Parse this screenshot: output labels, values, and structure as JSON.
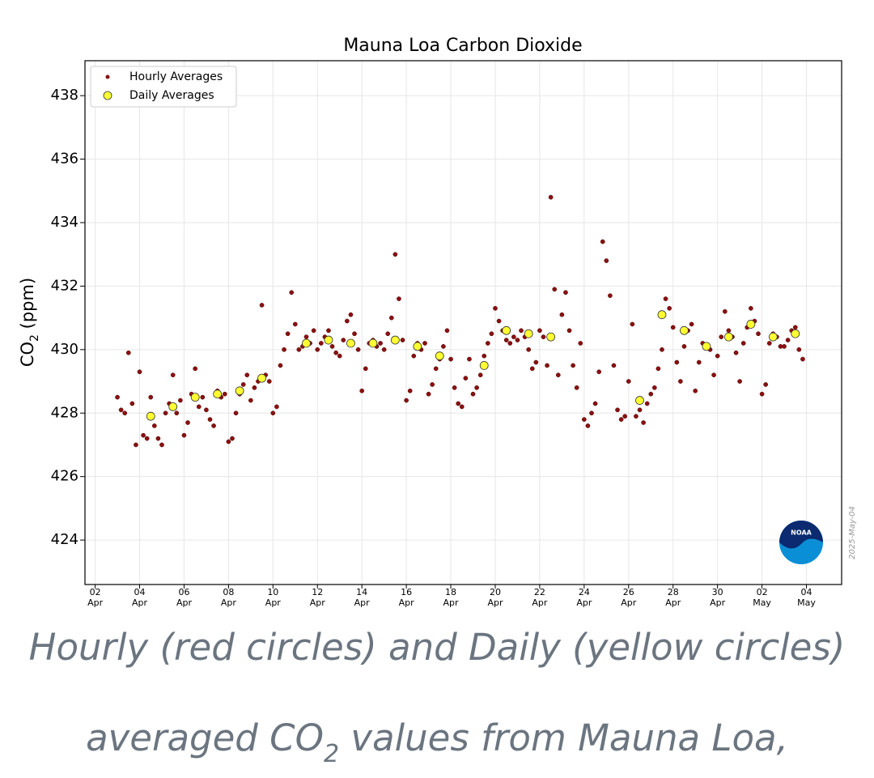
{
  "chart_data": {
    "type": "scatter",
    "title": "Mauna Loa Carbon Dioxide",
    "ylabel": [
      "CO",
      "2",
      " (ppm)"
    ],
    "xlim": [
      "04-01T13",
      "05-05T14"
    ],
    "xticks": [
      {
        "value": "04-02T00",
        "label": [
          "02",
          "Apr"
        ]
      },
      {
        "value": "04-04T00",
        "label": [
          "04",
          "Apr"
        ]
      },
      {
        "value": "04-06T00",
        "label": [
          "06",
          "Apr"
        ]
      },
      {
        "value": "04-08T00",
        "label": [
          "08",
          "Apr"
        ]
      },
      {
        "value": "04-10T00",
        "label": [
          "10",
          "Apr"
        ]
      },
      {
        "value": "04-12T00",
        "label": [
          "12",
          "Apr"
        ]
      },
      {
        "value": "04-14T00",
        "label": [
          "14",
          "Apr"
        ]
      },
      {
        "value": "04-16T00",
        "label": [
          "16",
          "Apr"
        ]
      },
      {
        "value": "04-18T00",
        "label": [
          "18",
          "Apr"
        ]
      },
      {
        "value": "04-20T00",
        "label": [
          "20",
          "Apr"
        ]
      },
      {
        "value": "04-22T00",
        "label": [
          "22",
          "Apr"
        ]
      },
      {
        "value": "04-24T00",
        "label": [
          "24",
          "Apr"
        ]
      },
      {
        "value": "04-26T00",
        "label": [
          "26",
          "Apr"
        ]
      },
      {
        "value": "04-28T00",
        "label": [
          "28",
          "Apr"
        ]
      },
      {
        "value": "04-30T00",
        "label": [
          "30",
          "Apr"
        ]
      },
      {
        "value": "05-02T00",
        "label": [
          "02",
          "May"
        ]
      },
      {
        "value": "05-04T00",
        "label": [
          "04",
          "May"
        ]
      }
    ],
    "ylim": [
      422.6,
      439.1
    ],
    "yticks": [
      424,
      426,
      428,
      430,
      432,
      434,
      436,
      438
    ],
    "grid": true,
    "legend": "upper left",
    "series": [
      {
        "name": "Hourly Averages",
        "color": "#8b1010",
        "x": [
          "04-03T00",
          "04-03T04",
          "04-03T08",
          "04-03T12",
          "04-03T16",
          "04-03T20",
          "04-04T00",
          "04-04T04",
          "04-04T08",
          "04-04T12",
          "04-04T16",
          "04-04T20",
          "04-05T00",
          "04-05T04",
          "04-05T08",
          "04-05T12",
          "04-05T16",
          "04-05T20",
          "04-06T00",
          "04-06T04",
          "04-06T08",
          "04-06T12",
          "04-06T16",
          "04-06T20",
          "04-07T00",
          "04-07T04",
          "04-07T08",
          "04-07T12",
          "04-07T16",
          "04-07T20",
          "04-08T00",
          "04-08T04",
          "04-08T08",
          "04-08T12",
          "04-08T16",
          "04-08T20",
          "04-09T00",
          "04-09T04",
          "04-09T08",
          "04-09T12",
          "04-09T16",
          "04-09T20",
          "04-10T00",
          "04-10T04",
          "04-10T08",
          "04-10T12",
          "04-10T16",
          "04-10T20",
          "04-11T00",
          "04-11T04",
          "04-11T08",
          "04-11T12",
          "04-11T16",
          "04-11T20",
          "04-12T00",
          "04-12T04",
          "04-12T08",
          "04-12T12",
          "04-12T16",
          "04-12T20",
          "04-13T00",
          "04-13T04",
          "04-13T08",
          "04-13T12",
          "04-13T16",
          "04-13T20",
          "04-14T00",
          "04-14T04",
          "04-14T08",
          "04-14T12",
          "04-14T16",
          "04-14T20",
          "04-15T00",
          "04-15T04",
          "04-15T08",
          "04-15T12",
          "04-15T16",
          "04-15T20",
          "04-16T00",
          "04-16T04",
          "04-16T08",
          "04-16T12",
          "04-16T16",
          "04-16T20",
          "04-17T00",
          "04-17T04",
          "04-17T08",
          "04-17T12",
          "04-17T16",
          "04-17T20",
          "04-18T00",
          "04-18T04",
          "04-18T08",
          "04-18T12",
          "04-18T16",
          "04-18T20",
          "04-19T00",
          "04-19T04",
          "04-19T08",
          "04-19T12",
          "04-19T16",
          "04-19T20",
          "04-20T00",
          "04-20T04",
          "04-20T08",
          "04-20T12",
          "04-20T16",
          "04-20T20",
          "04-21T00",
          "04-21T04",
          "04-21T08",
          "04-21T12",
          "04-21T16",
          "04-21T20",
          "04-22T00",
          "04-22T04",
          "04-22T08",
          "04-22T12",
          "04-22T16",
          "04-22T20",
          "04-23T00",
          "04-23T04",
          "04-23T08",
          "04-23T12",
          "04-23T16",
          "04-23T20",
          "04-24T00",
          "04-24T04",
          "04-24T08",
          "04-24T12",
          "04-24T16",
          "04-24T20",
          "04-25T00",
          "04-25T04",
          "04-25T08",
          "04-25T12",
          "04-25T16",
          "04-25T20",
          "04-26T00",
          "04-26T04",
          "04-26T08",
          "04-26T12",
          "04-26T16",
          "04-26T20",
          "04-27T00",
          "04-27T04",
          "04-27T08",
          "04-27T12",
          "04-27T16",
          "04-27T20",
          "04-28T00",
          "04-28T04",
          "04-28T08",
          "04-28T12",
          "04-28T16",
          "04-28T20",
          "04-29T00",
          "04-29T04",
          "04-29T08",
          "04-29T12",
          "04-29T16",
          "04-29T20",
          "04-30T00",
          "04-30T04",
          "04-30T08",
          "04-30T12",
          "04-30T16",
          "04-30T20",
          "05-01T00",
          "05-01T04",
          "05-01T08",
          "05-01T12",
          "05-01T16",
          "05-01T20",
          "05-02T00",
          "05-02T04",
          "05-02T08",
          "05-02T12",
          "05-02T16",
          "05-02T20",
          "05-03T00",
          "05-03T04",
          "05-03T08",
          "05-03T12",
          "05-03T16",
          "05-03T20"
        ],
        "values": [
          428.5,
          428.1,
          428.0,
          429.9,
          428.3,
          427.0,
          429.3,
          427.3,
          427.2,
          428.5,
          427.6,
          427.2,
          427.0,
          428.0,
          428.3,
          429.2,
          428.0,
          428.4,
          427.3,
          427.7,
          428.6,
          429.4,
          428.2,
          428.5,
          428.1,
          427.8,
          427.6,
          428.7,
          428.5,
          428.6,
          427.1,
          427.2,
          428.0,
          428.6,
          428.9,
          429.2,
          428.4,
          428.8,
          429.0,
          431.4,
          429.2,
          429.0,
          428.0,
          428.2,
          429.5,
          430.0,
          430.5,
          431.8,
          430.8,
          430.0,
          430.1,
          430.4,
          430.2,
          430.6,
          430.0,
          430.2,
          430.4,
          430.6,
          430.1,
          429.9,
          429.8,
          430.3,
          430.9,
          431.1,
          430.5,
          430.0,
          428.7,
          429.4,
          430.2,
          430.3,
          430.1,
          430.2,
          430.0,
          430.5,
          431.0,
          433.0,
          431.6,
          430.3,
          428.4,
          428.7,
          429.8,
          430.2,
          430.0,
          430.2,
          428.6,
          428.9,
          429.4,
          429.7,
          430.1,
          430.6,
          429.7,
          428.8,
          428.3,
          428.2,
          429.1,
          429.7,
          428.6,
          428.8,
          429.2,
          429.8,
          430.2,
          430.5,
          431.3,
          430.9,
          430.6,
          430.3,
          430.2,
          430.4,
          430.3,
          430.6,
          430.4,
          430.0,
          429.4,
          429.6,
          430.6,
          430.4,
          429.5,
          434.8,
          431.9,
          429.2,
          431.1,
          431.8,
          430.6,
          429.5,
          428.8,
          430.2,
          427.8,
          427.6,
          428.0,
          428.3,
          429.3,
          433.4,
          432.8,
          431.7,
          429.5,
          428.1,
          427.8,
          427.9,
          429.0,
          430.8,
          427.9,
          428.1,
          427.7,
          428.3,
          428.6,
          428.8,
          429.4,
          430.0,
          431.6,
          431.3,
          430.7,
          429.6,
          429.0,
          430.1,
          430.6,
          430.8,
          428.7,
          429.6,
          430.2,
          430.1,
          430.0,
          429.2,
          429.8,
          430.4,
          431.2,
          430.6,
          430.4,
          429.9,
          429.0,
          430.2,
          430.7,
          431.3,
          430.9,
          430.5,
          428.6,
          428.9,
          430.2,
          430.5,
          430.4,
          430.1,
          430.1,
          430.3,
          430.6,
          430.7,
          430.0,
          429.7
        ]
      },
      {
        "name": "Daily Averages",
        "color": "#ffff33",
        "x": [
          "04-04T12",
          "04-05T12",
          "04-06T12",
          "04-07T12",
          "04-08T12",
          "04-09T12",
          "04-11T12",
          "04-12T12",
          "04-13T12",
          "04-14T12",
          "04-15T12",
          "04-16T12",
          "04-17T12",
          "04-19T12",
          "04-20T12",
          "04-21T12",
          "04-22T12",
          "04-26T12",
          "04-27T12",
          "04-28T12",
          "04-29T12",
          "04-30T12",
          "05-01T12",
          "05-02T12",
          "05-03T12"
        ],
        "values": [
          427.9,
          428.2,
          428.5,
          428.6,
          428.7,
          429.1,
          430.2,
          430.3,
          430.2,
          430.2,
          430.3,
          430.1,
          429.8,
          429.5,
          430.6,
          430.5,
          430.4,
          428.4,
          431.1,
          430.6,
          430.1,
          430.4,
          430.8,
          430.4,
          430.5
        ]
      }
    ],
    "watermark": "2025-May-04",
    "logo": "NOAA"
  },
  "caption": [
    [
      "Hourly (red circles) and Daily (yellow circles)"
    ],
    [
      "averaged CO",
      "2",
      " values from Mauna Loa,"
    ]
  ]
}
